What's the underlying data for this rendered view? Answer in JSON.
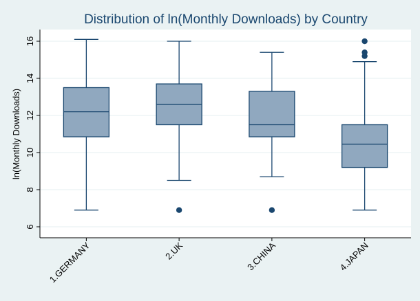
{
  "chart_data": {
    "type": "box",
    "title": "Distribution of ln(Monthly Downloads) by Country",
    "xlabel": "",
    "ylabel": "ln(Monthly Downloads)",
    "ylim": [
      5.5,
      16.6
    ],
    "yticks": [
      6,
      8,
      10,
      12,
      14,
      16
    ],
    "grid": "horizontal",
    "categories": [
      "1.GERMANY",
      "2.UK",
      "3.CHINA",
      "4.JAPAN"
    ],
    "boxes": [
      {
        "category": "1.GERMANY",
        "min": 6.9,
        "q1": 10.85,
        "median": 12.2,
        "q3": 13.5,
        "max": 16.1,
        "outliers": []
      },
      {
        "category": "2.UK",
        "min": 8.5,
        "q1": 11.5,
        "median": 12.6,
        "q3": 13.7,
        "max": 16.0,
        "outliers": [
          6.9
        ]
      },
      {
        "category": "3.CHINA",
        "min": 8.7,
        "q1": 10.85,
        "median": 11.5,
        "q3": 13.3,
        "max": 15.4,
        "outliers": [
          6.9
        ]
      },
      {
        "category": "4.JAPAN",
        "min": 6.9,
        "q1": 9.2,
        "median": 10.45,
        "q3": 11.5,
        "max": 14.9,
        "outliers": [
          15.2,
          15.4,
          16.0
        ]
      }
    ],
    "colors": {
      "box_fill": "#90a8bf",
      "box_stroke": "#1a476f",
      "outlier": "#1a476f",
      "plot_bg": "#ffffff",
      "page_bg": "#eaf2f3",
      "grid": "#eaf2f3",
      "title": "#1a476f"
    }
  }
}
